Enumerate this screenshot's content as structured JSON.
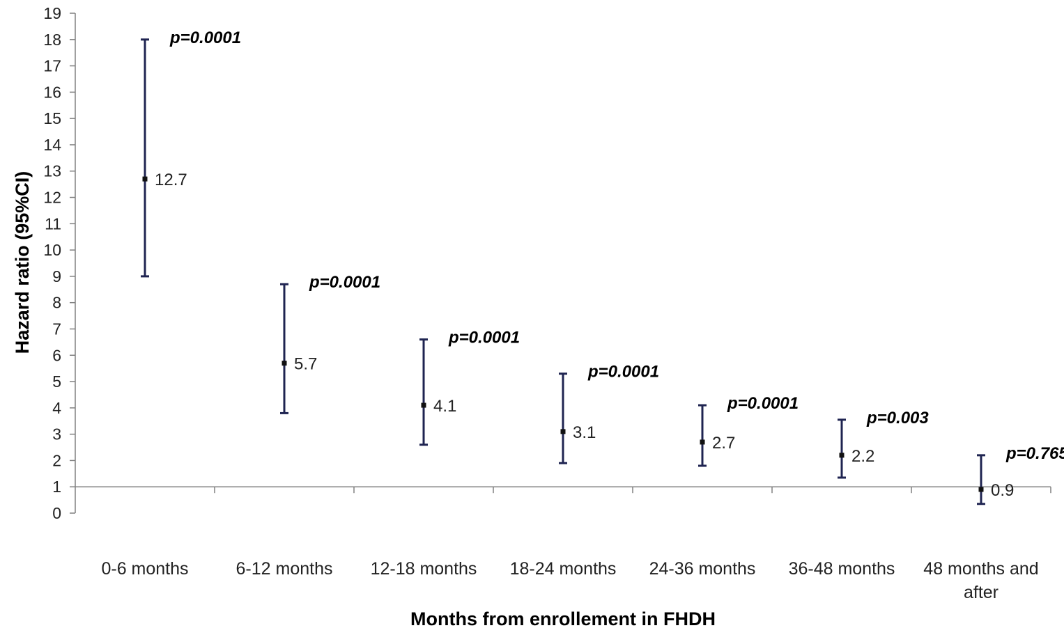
{
  "chart_data": {
    "type": "errorbar",
    "xlabel": "Months from enrollement in FHDH",
    "ylabel": "Hazard ratio (95%CI)",
    "ylim": [
      0,
      19
    ],
    "yticks": [
      "0",
      "1",
      "2",
      "3",
      "4",
      "5",
      "6",
      "7",
      "8",
      "9",
      "10",
      "11",
      "12",
      "13",
      "14",
      "15",
      "16",
      "17",
      "18",
      "19"
    ],
    "reference_line": 1,
    "grid": false,
    "colors": {
      "bar": "#1f2451",
      "axis": "#808080",
      "text": "#222222"
    },
    "points": [
      {
        "category": [
          "0-6 months"
        ],
        "hr": 12.7,
        "label": "12.7",
        "lower": 9.0,
        "upper": 18.0,
        "p": "p=0.0001"
      },
      {
        "category": [
          "6-12 months"
        ],
        "hr": 5.7,
        "label": "5.7",
        "lower": 3.8,
        "upper": 8.7,
        "p": "p=0.0001"
      },
      {
        "category": [
          "12-18 months"
        ],
        "hr": 4.1,
        "label": "4.1",
        "lower": 2.6,
        "upper": 6.6,
        "p": "p=0.0001"
      },
      {
        "category": [
          "18-24 months"
        ],
        "hr": 3.1,
        "label": "3.1",
        "lower": 1.9,
        "upper": 5.3,
        "p": "p=0.0001"
      },
      {
        "category": [
          "24-36 months"
        ],
        "hr": 2.7,
        "label": "2.7",
        "lower": 1.8,
        "upper": 4.1,
        "p": "p=0.0001"
      },
      {
        "category": [
          "36-48 months"
        ],
        "hr": 2.2,
        "label": "2.2",
        "lower": 1.35,
        "upper": 3.55,
        "p": "p=0.003"
      },
      {
        "category": [
          "48 months and",
          "after"
        ],
        "hr": 0.9,
        "label": "0.9",
        "lower": 0.35,
        "upper": 2.2,
        "p": "p=0.765"
      }
    ]
  }
}
